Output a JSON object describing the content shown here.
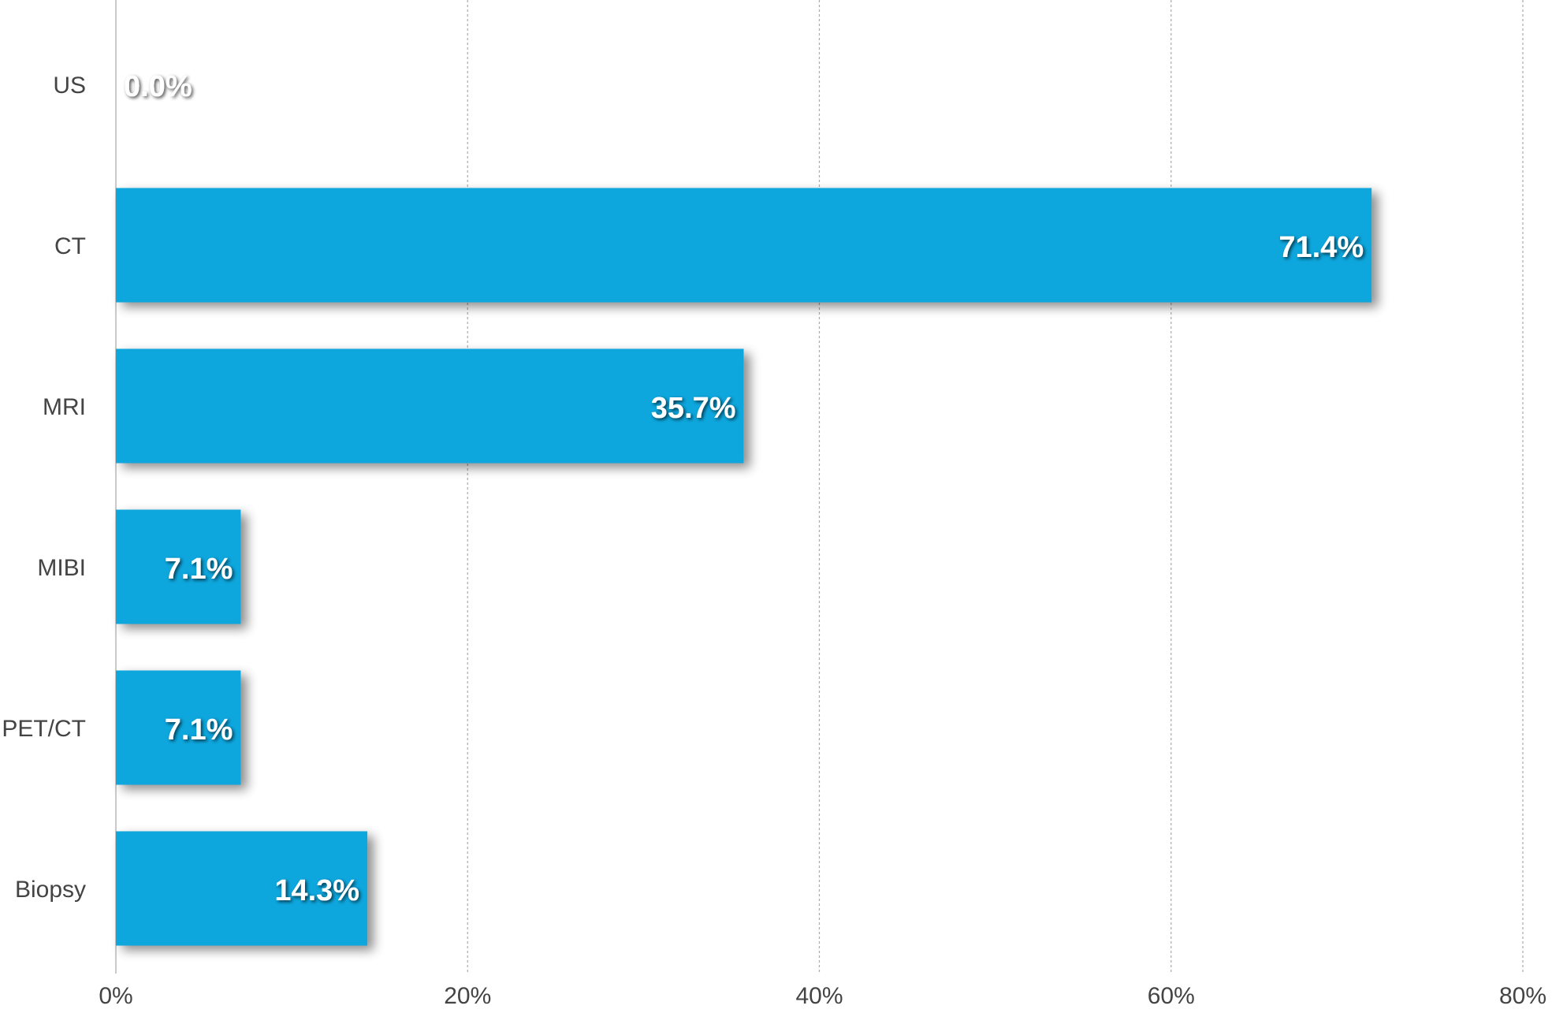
{
  "chart_data": {
    "type": "bar",
    "orientation": "horizontal",
    "categories": [
      "US",
      "CT",
      "MRI",
      "MIBI",
      "PET/CT",
      "Biopsy"
    ],
    "values": [
      0.0,
      71.4,
      35.7,
      7.1,
      7.1,
      14.3
    ],
    "value_labels": [
      "0.0%",
      "71.4%",
      "35.7%",
      "7.1%",
      "7.1%",
      "14.3%"
    ],
    "xlim": [
      0,
      80
    ],
    "xticks": [
      0,
      20,
      40,
      60,
      80
    ],
    "xtick_labels": [
      "0%",
      "20%",
      "40%",
      "60%",
      "80%"
    ],
    "title": "",
    "xlabel": "",
    "ylabel": "",
    "grid": "vertical dotted",
    "legend": "none",
    "bar_color": "#0aa6dd",
    "label_color": "#ffffff",
    "axis_text_color": "#444444",
    "gridline_color": "#aaaaaa"
  }
}
